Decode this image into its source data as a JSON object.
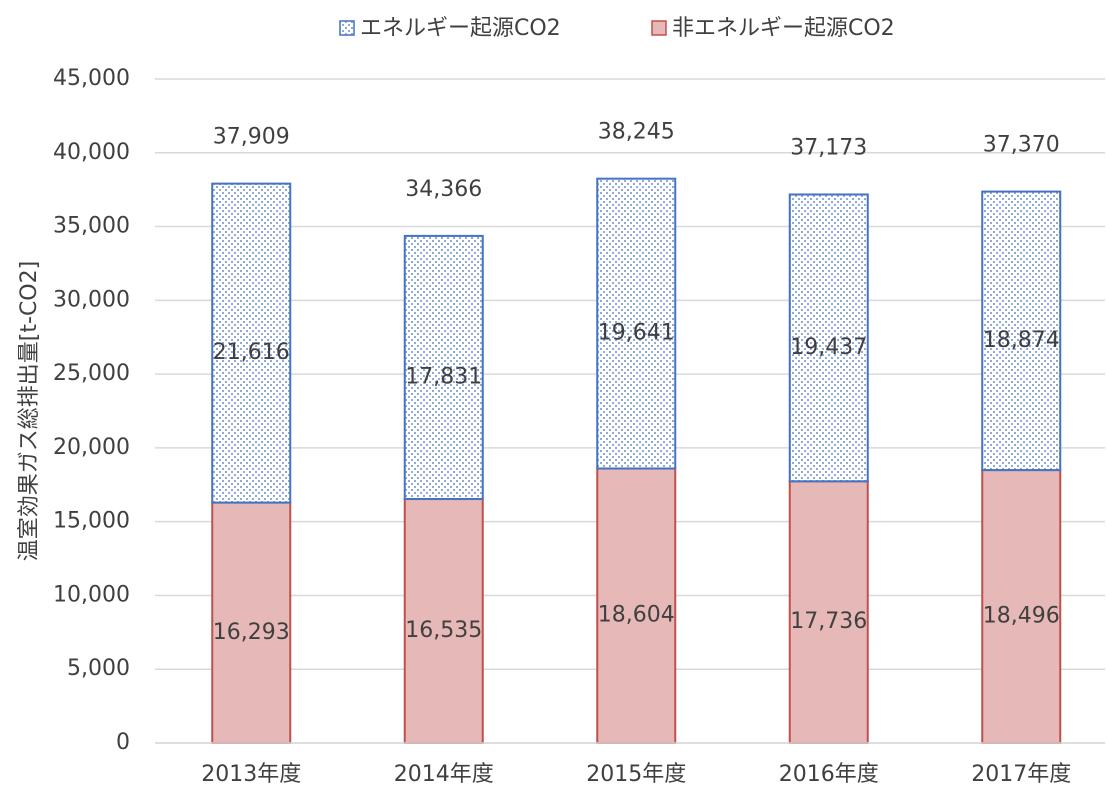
{
  "chart_data": {
    "type": "stacked_bar",
    "y_axis_label": "温室効果ガス総排出量[t-CO2]",
    "categories": [
      "2013年度",
      "2014年度",
      "2015年度",
      "2016年度",
      "2017年度"
    ],
    "series": [
      {
        "name": "エネルギー起源CO2",
        "color": "#4472c4",
        "fill": "pattern-dots",
        "values": [
          21616,
          17831,
          19641,
          19437,
          18874
        ],
        "value_labels": [
          "21,616",
          "17,831",
          "19,641",
          "19,437",
          "18,874"
        ]
      },
      {
        "name": "非エネルギー起源CO2",
        "color": "#c0504d",
        "fill": "#e6b8b7",
        "values": [
          16293,
          16535,
          18604,
          17736,
          18496
        ],
        "value_labels": [
          "16,293",
          "16,535",
          "18,604",
          "17,736",
          "18,496"
        ]
      }
    ],
    "totals": [
      37909,
      34366,
      38245,
      37173,
      37370
    ],
    "total_labels": [
      "37,909",
      "34,366",
      "38,245",
      "37,173",
      "37,370"
    ],
    "ylim": [
      0,
      45000
    ],
    "yticks": [
      0,
      {
        "value": 5000,
        "label": "5,000"
      },
      {
        "value": 10000,
        "label": "10,000"
      },
      {
        "value": 15000,
        "label": "15,000"
      },
      {
        "value": 20000,
        "label": "20,000"
      },
      {
        "value": 25000,
        "label": "25,000"
      },
      {
        "value": 30000,
        "label": "30,000"
      },
      {
        "value": 35000,
        "label": "35,000"
      },
      {
        "value": 40000,
        "label": "40,000"
      },
      {
        "value": 45000,
        "label": "45,000"
      }
    ],
    "grid": true,
    "legend": "top"
  }
}
